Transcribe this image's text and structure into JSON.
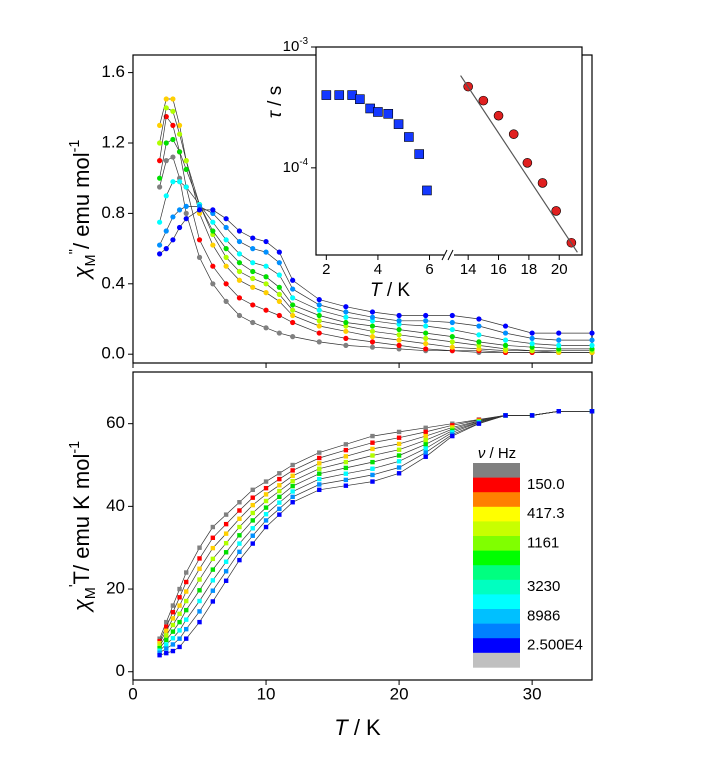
{
  "chart_data": [
    {
      "type": "line",
      "marker": "circle",
      "ylabel": [
        {
          "text": "χ",
          "style": "italic"
        },
        {
          "text": "M",
          "style": "sub"
        },
        {
          "text": "''",
          "style": "sup"
        },
        {
          "text": "/ emu mol",
          "style": "normal"
        },
        {
          "text": "-1",
          "style": "sup"
        }
      ],
      "xlim": [
        0,
        34.5
      ],
      "xticks": [
        0,
        10,
        20,
        30
      ],
      "xtick_labels": false,
      "ylim": [
        -0.05,
        1.7
      ],
      "yticks": [
        {
          "value": 0,
          "label": "0.0"
        },
        0.4,
        0.8,
        1.2,
        1.6
      ],
      "x": [
        2,
        2.5,
        3,
        3.5,
        4,
        5,
        6,
        7,
        8,
        9,
        10,
        11,
        12,
        14,
        16,
        18,
        20,
        22,
        24,
        26,
        28,
        30,
        32,
        34.5
      ],
      "series": [
        {
          "color": "#808080",
          "values": [
            0.95,
            1.1,
            1.12,
            1.0,
            0.8,
            0.55,
            0.4,
            0.3,
            0.22,
            0.18,
            0.15,
            0.12,
            0.1,
            0.07,
            0.05,
            0.04,
            0.03,
            0.02,
            0.02,
            0.01,
            0.01,
            0.01,
            0.01,
            0.01
          ]
        },
        {
          "color": "#ff0000",
          "values": [
            1.1,
            1.35,
            1.3,
            1.15,
            0.95,
            0.65,
            0.5,
            0.4,
            0.32,
            0.28,
            0.25,
            0.22,
            0.18,
            0.12,
            0.09,
            0.07,
            0.05,
            0.03,
            0.02,
            0.02,
            0.01,
            0.01,
            0.01,
            0.01
          ]
        },
        {
          "color": "#ffd000",
          "values": [
            1.3,
            1.45,
            1.45,
            1.3,
            1.1,
            0.8,
            0.62,
            0.5,
            0.42,
            0.38,
            0.35,
            0.3,
            0.22,
            0.16,
            0.13,
            0.1,
            0.08,
            0.06,
            0.04,
            0.03,
            0.02,
            0.02,
            0.01,
            0.01
          ]
        },
        {
          "color": "#b0ff00",
          "values": [
            1.2,
            1.4,
            1.38,
            1.25,
            1.1,
            0.85,
            0.68,
            0.55,
            0.47,
            0.43,
            0.4,
            0.34,
            0.25,
            0.19,
            0.16,
            0.13,
            0.11,
            0.09,
            0.07,
            0.05,
            0.03,
            0.02,
            0.02,
            0.02
          ]
        },
        {
          "color": "#00e000",
          "values": [
            1.0,
            1.2,
            1.22,
            1.15,
            1.05,
            0.85,
            0.7,
            0.6,
            0.52,
            0.47,
            0.44,
            0.38,
            0.28,
            0.22,
            0.18,
            0.16,
            0.14,
            0.12,
            0.1,
            0.07,
            0.05,
            0.04,
            0.03,
            0.03
          ]
        },
        {
          "color": "#00ffff",
          "values": [
            0.75,
            0.9,
            0.98,
            0.98,
            0.95,
            0.85,
            0.75,
            0.65,
            0.57,
            0.52,
            0.5,
            0.45,
            0.32,
            0.25,
            0.21,
            0.19,
            0.17,
            0.16,
            0.14,
            0.11,
            0.08,
            0.06,
            0.05,
            0.05
          ]
        },
        {
          "color": "#0090ff",
          "values": [
            0.62,
            0.7,
            0.78,
            0.82,
            0.84,
            0.84,
            0.8,
            0.72,
            0.64,
            0.6,
            0.58,
            0.52,
            0.37,
            0.28,
            0.24,
            0.21,
            0.19,
            0.19,
            0.18,
            0.16,
            0.12,
            0.09,
            0.08,
            0.08
          ]
        },
        {
          "color": "#0000ff",
          "values": [
            0.57,
            0.6,
            0.65,
            0.72,
            0.77,
            0.82,
            0.82,
            0.77,
            0.7,
            0.66,
            0.64,
            0.58,
            0.42,
            0.31,
            0.27,
            0.24,
            0.22,
            0.22,
            0.22,
            0.2,
            0.16,
            0.12,
            0.12,
            0.12
          ]
        }
      ]
    },
    {
      "type": "line",
      "marker": "square",
      "xlabel": [
        {
          "text": "T",
          "style": "italic"
        },
        {
          "text": " / K",
          "style": "normal"
        }
      ],
      "ylabel": [
        {
          "text": "χ",
          "style": "italic"
        },
        {
          "text": "M",
          "style": "sub"
        },
        {
          "text": "'",
          "style": "sup"
        },
        {
          "text": "T/ emu K mol",
          "style": "normal"
        },
        {
          "text": "-1",
          "style": "sup"
        }
      ],
      "xlim": [
        0,
        34.5
      ],
      "xticks": [
        0,
        10,
        20,
        30
      ],
      "xtick_labels": true,
      "ylim": [
        -2,
        72.5
      ],
      "yticks": [
        0,
        20,
        40,
        60
      ],
      "x": [
        2,
        2.5,
        3,
        3.5,
        4,
        5,
        6,
        7,
        8,
        9,
        10,
        11,
        12,
        14,
        16,
        18,
        20,
        22,
        24,
        26,
        28,
        30,
        32,
        34.5
      ],
      "series": [
        {
          "color": "#808080",
          "values": [
            8,
            12,
            16,
            20,
            24,
            30,
            35,
            38,
            41,
            44,
            46,
            48,
            50,
            53,
            55,
            57,
            58,
            59,
            60,
            61,
            62,
            62,
            63,
            63
          ]
        },
        {
          "color": "#ff0000",
          "values": [
            7.4,
            10.9,
            14.4,
            18,
            21.7,
            27.4,
            32.4,
            35.7,
            39,
            42.1,
            44.4,
            46.6,
            48.7,
            51.7,
            53.6,
            55.4,
            56.6,
            58,
            59.6,
            60.9,
            62,
            62,
            63,
            63
          ]
        },
        {
          "color": "#ffd000",
          "values": [
            6.9,
            9.9,
            12.9,
            16,
            19.4,
            24.9,
            29.9,
            33.4,
            37,
            40.3,
            42.9,
            45.1,
            47.4,
            50.4,
            52.1,
            53.9,
            55.1,
            57,
            59.1,
            60.7,
            62,
            62,
            63,
            63
          ]
        },
        {
          "color": "#b0ff00",
          "values": [
            6.3,
            8.8,
            11.3,
            14,
            17.1,
            22.3,
            27.3,
            31.1,
            35,
            38.4,
            41.3,
            43.7,
            46.1,
            49.1,
            50.7,
            52.3,
            53.7,
            56,
            58.7,
            60.6,
            62,
            62,
            63,
            63
          ]
        },
        {
          "color": "#00e000",
          "values": [
            5.7,
            7.7,
            9.7,
            12,
            14.9,
            19.7,
            24.7,
            28.9,
            33,
            36.6,
            39.7,
            42.3,
            44.9,
            47.9,
            49.3,
            50.7,
            52.3,
            55,
            58.3,
            60.4,
            62,
            62,
            63,
            63
          ]
        },
        {
          "color": "#00ffff",
          "values": [
            5.1,
            6.6,
            8.1,
            10,
            12.6,
            17.1,
            22.1,
            26.6,
            31,
            34.7,
            38.1,
            40.9,
            43.6,
            46.6,
            47.9,
            49.1,
            50.9,
            54,
            57.9,
            60.3,
            62,
            62,
            63,
            63
          ]
        },
        {
          "color": "#0090ff",
          "values": [
            4.6,
            5.6,
            6.6,
            8,
            10.3,
            14.6,
            19.6,
            24.3,
            29,
            32.9,
            36.6,
            39.4,
            42.3,
            45.3,
            46.4,
            47.6,
            49.4,
            53,
            57.4,
            60.1,
            62,
            62,
            63,
            63
          ]
        },
        {
          "color": "#0000ff",
          "values": [
            4,
            4.5,
            5,
            6,
            8,
            12,
            17,
            22,
            27,
            31,
            35,
            38,
            41,
            44,
            45,
            46,
            48,
            52,
            57,
            60,
            62,
            62,
            63,
            63
          ]
        }
      ],
      "legend": {
        "title": [
          {
            "text": "ν",
            "style": "italic"
          },
          {
            "text": " / Hz",
            "style": "normal"
          }
        ],
        "colors": [
          "#808080",
          "#ff0000",
          "#ff8000",
          "#ffff00",
          "#c8ff00",
          "#80ff00",
          "#00ff00",
          "#00ff80",
          "#00ffc0",
          "#00ffff",
          "#00c0ff",
          "#0080ff",
          "#0000ff",
          "#c0c0c0"
        ],
        "labels": [
          null,
          "150.0",
          null,
          "417.3",
          null,
          "1161",
          null,
          null,
          "3230",
          null,
          "8986",
          null,
          "2.500E4",
          null
        ]
      }
    },
    {
      "type": "scatter",
      "xlabel": [
        {
          "text": "T",
          "style": "italic"
        },
        {
          "text": " / K",
          "style": "normal"
        }
      ],
      "ylabel": [
        {
          "text": "τ",
          "style": "italic"
        },
        {
          "text": " / s",
          "style": "normal"
        }
      ],
      "xsegments": [
        [
          1.6,
          6.6
        ],
        [
          13,
          21.5
        ]
      ],
      "xticks": [
        2,
        4,
        6,
        14,
        16,
        18,
        20
      ],
      "ylog": true,
      "ylim": [
        1.9e-05,
        0.001
      ],
      "yticks": [
        {
          "value": 0.001,
          "label": [
            {
              "text": "10",
              "style": "normal"
            },
            {
              "text": "-3",
              "style": "sup"
            }
          ]
        },
        {
          "value": 0.0001,
          "label": [
            {
              "text": "10",
              "style": "normal"
            },
            {
              "text": "-4",
              "style": "sup"
            }
          ]
        }
      ],
      "series": [
        {
          "color": "#1438ff",
          "marker": "square",
          "x": [
            2,
            2.5,
            3,
            3.3,
            3.7,
            4,
            4.4,
            4.8,
            5.2,
            5.6,
            5.9
          ],
          "values": [
            0.0004,
            0.0004,
            0.0004,
            0.00037,
            0.00031,
            0.00029,
            0.00028,
            0.00023,
            0.00018,
            0.00013,
            6.5e-05
          ]
        },
        {
          "color": "#e02020",
          "marker": "circle",
          "x": [
            14,
            15,
            16,
            17,
            17.9,
            18.9,
            19.8,
            20.8
          ],
          "values": [
            0.00047,
            0.00036,
            0.00027,
            0.00019,
            0.00011,
            7.5e-05,
            4.4e-05,
            2.4e-05
          ]
        },
        {
          "color": "#555555",
          "marker": null,
          "x": [
            13.5,
            21.2
          ],
          "values": [
            0.00058,
            2e-05
          ]
        }
      ]
    }
  ]
}
